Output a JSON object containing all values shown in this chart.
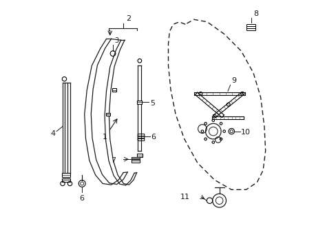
{
  "background_color": "#ffffff",
  "line_color": "#1a1a1a",
  "figsize": [
    4.89,
    3.6
  ],
  "dpi": 100,
  "door_panel": {
    "x": [
      5.6,
      5.35,
      5.1,
      4.95,
      4.9,
      4.9,
      5.0,
      5.2,
      5.55,
      6.1,
      6.8,
      7.5,
      8.1,
      8.55,
      8.8,
      8.9,
      8.85,
      8.7,
      8.4,
      7.9,
      7.2,
      6.5,
      5.95,
      5.6
    ],
    "y": [
      9.2,
      9.3,
      9.2,
      8.9,
      8.4,
      7.5,
      6.5,
      5.5,
      4.5,
      3.5,
      2.8,
      2.4,
      2.4,
      2.7,
      3.2,
      4.0,
      5.0,
      6.2,
      7.2,
      8.1,
      8.8,
      9.3,
      9.4,
      9.2
    ]
  }
}
